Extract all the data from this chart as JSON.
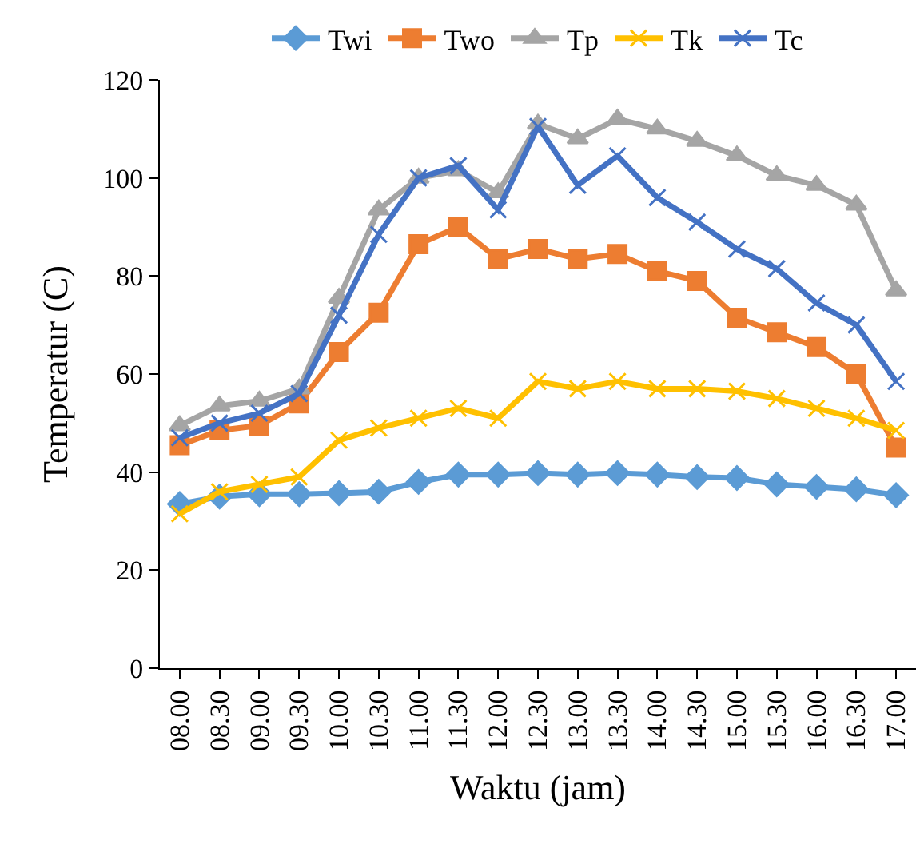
{
  "chart_data": {
    "type": "line",
    "xlabel": "Waktu (jam)",
    "ylabel": "Temperatur (C)",
    "categories": [
      "08.00",
      "08.30",
      "09.00",
      "09.30",
      "10.00",
      "10.30",
      "11.00",
      "11.30",
      "12.00",
      "12.30",
      "13.00",
      "13.30",
      "14.00",
      "14.30",
      "15.00",
      "15.30",
      "16.00",
      "16.30",
      "17.00"
    ],
    "ylim": [
      0,
      120
    ],
    "yticks": [
      0,
      20,
      40,
      60,
      80,
      100,
      120
    ],
    "grid": false,
    "legend": "top",
    "series": [
      {
        "name": "Twi",
        "color": "#5b9bd5",
        "marker": "diamond",
        "values": [
          33.5,
          35,
          35.5,
          35.5,
          35.7,
          36,
          38,
          39.5,
          39.5,
          39.8,
          39.5,
          39.8,
          39.5,
          39,
          38.8,
          37.5,
          37,
          36.5,
          35.3
        ]
      },
      {
        "name": "Two",
        "color": "#ed7d31",
        "marker": "square",
        "values": [
          45.5,
          48.5,
          49.5,
          54,
          64.5,
          72.5,
          86.5,
          90,
          83.5,
          85.5,
          83.5,
          84.5,
          81,
          79,
          71.5,
          68.5,
          65.5,
          60,
          45
        ]
      },
      {
        "name": "Tp",
        "color": "#a5a5a5",
        "marker": "triangle",
        "values": [
          49.5,
          53.5,
          54.5,
          57,
          75.5,
          93.5,
          100,
          101.5,
          97,
          111,
          108,
          112,
          110,
          107.5,
          104.5,
          100.5,
          98.5,
          94.5,
          77
        ]
      },
      {
        "name": "Tk",
        "color": "#ffc000",
        "marker": "cross",
        "values": [
          31.5,
          36,
          37.5,
          39,
          46.5,
          49,
          51,
          53,
          51,
          58.5,
          57,
          58.5,
          57,
          57,
          56.5,
          55,
          53,
          51,
          48.5
        ]
      },
      {
        "name": "Tc",
        "color": "#4472c4",
        "marker": "cross",
        "values": [
          47,
          50,
          52,
          56,
          72,
          88.5,
          100,
          102.5,
          93.5,
          110.5,
          98.5,
          104.5,
          96,
          91,
          85.5,
          81.5,
          74.5,
          70,
          58.5
        ]
      }
    ]
  }
}
